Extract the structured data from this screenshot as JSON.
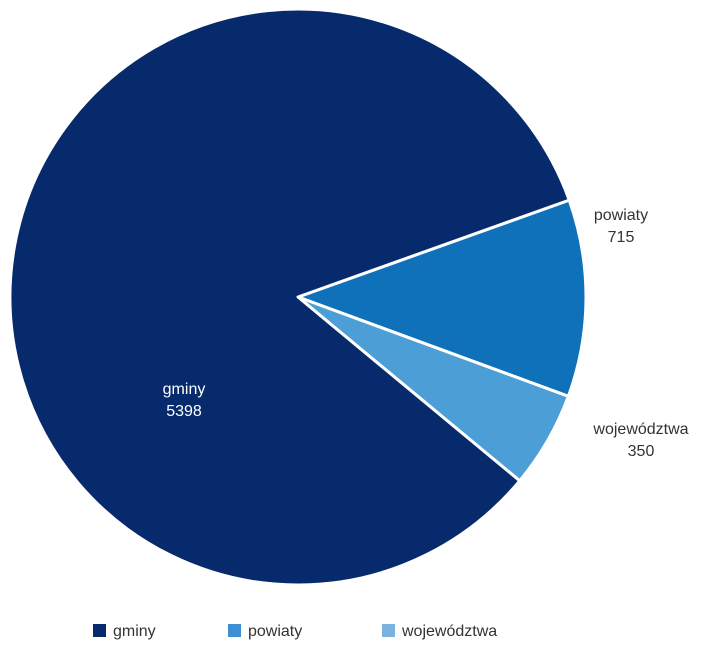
{
  "chart_data": {
    "type": "pie",
    "title": "",
    "legend_position": "bottom",
    "slices": [
      {
        "label": "gminy",
        "value": 5398,
        "color": "#072a6c",
        "legend_color": "#072a6c",
        "label_color": "#ffffff",
        "label_placement": "inside"
      },
      {
        "label": "powiaty",
        "value": 715,
        "color": "#1071bb",
        "legend_color": "#3d8fd1",
        "label_color": "#333333",
        "label_placement": "outside"
      },
      {
        "label": "województwa",
        "value": 350,
        "color": "#4b9fd6",
        "legend_color": "#79b4e0",
        "label_color": "#333333",
        "label_placement": "outside"
      }
    ]
  }
}
